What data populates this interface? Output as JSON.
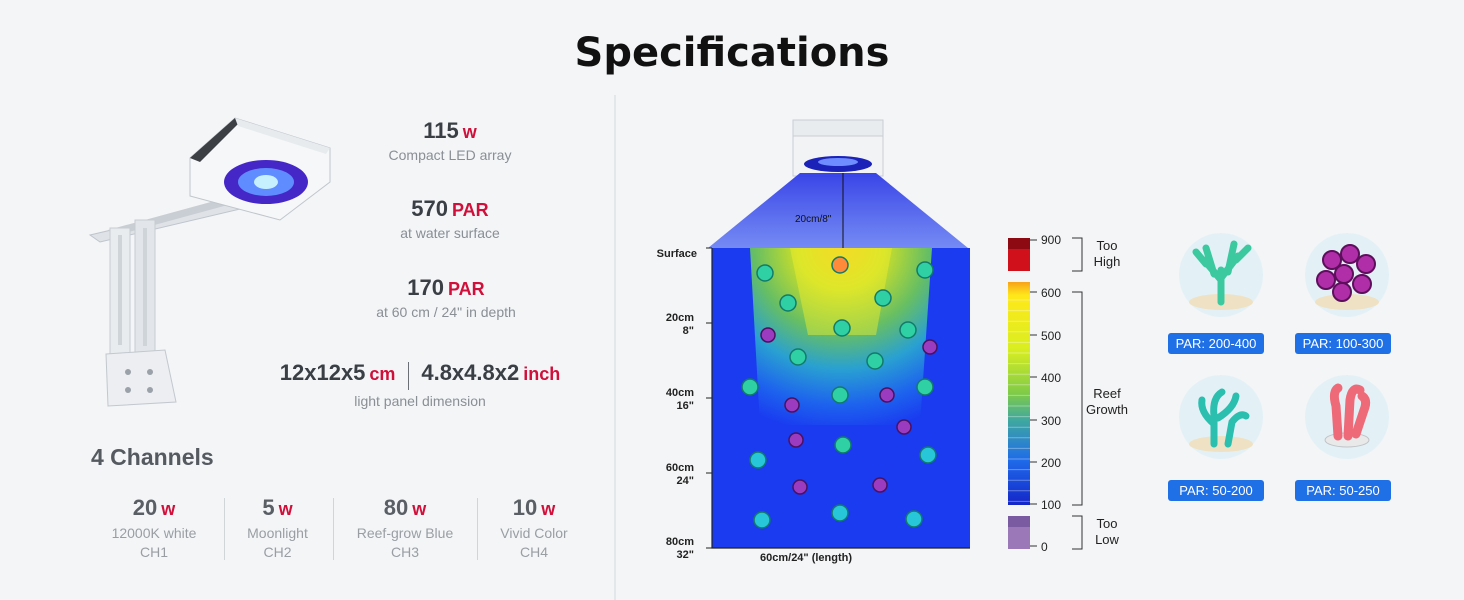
{
  "title": "Specifications",
  "specs": {
    "power": {
      "value": "115",
      "unit": "w",
      "desc": "Compact LED array"
    },
    "par_surface": {
      "value": "570",
      "unit": "PAR",
      "desc": "at water surface"
    },
    "par_depth": {
      "value": "170",
      "unit": "PAR",
      "desc": "at 60 cm / 24\" in depth"
    },
    "dimension": {
      "cm_value": "12x12x5",
      "cm_unit": "cm",
      "inch_value": "4.8x4.8x2",
      "inch_unit": "inch",
      "desc": "light panel dimension"
    }
  },
  "channels": {
    "title": "4 Channels",
    "items": [
      {
        "value": "20",
        "unit": "w",
        "desc": "12000K white",
        "ch": "CH1"
      },
      {
        "value": "5",
        "unit": "w",
        "desc": "Moonlight",
        "ch": "CH2"
      },
      {
        "value": "80",
        "unit": "w",
        "desc": "Reef-grow Blue",
        "ch": "CH3"
      },
      {
        "value": "10",
        "unit": "w",
        "desc": "Vivid Color",
        "ch": "CH4"
      }
    ]
  },
  "diagram": {
    "mount_height": "20cm/8\"",
    "depth_labels": [
      {
        "line1": "Surface",
        "line2": ""
      },
      {
        "line1": "20cm",
        "line2": "8\""
      },
      {
        "line1": "40cm",
        "line2": "16\""
      },
      {
        "line1": "60cm",
        "line2": "24\""
      },
      {
        "line1": "80cm",
        "line2": "32\""
      }
    ],
    "length_label": "60cm/24\"  (length)"
  },
  "par_scale": {
    "ticks": [
      "900",
      "600",
      "500",
      "400",
      "300",
      "200",
      "100",
      "0"
    ],
    "zones": [
      {
        "line1": "Too",
        "line2": "High"
      },
      {
        "line1": "Reef",
        "line2": "Growth"
      },
      {
        "line1": "Too",
        "line2": "Low"
      }
    ],
    "colors": {
      "high": "#d0101a",
      "low": "#9b79b8"
    }
  },
  "corals": [
    {
      "par": "PAR: 200-400",
      "icon": "branching-coral-icon",
      "color": "#3cc9a0"
    },
    {
      "par": "PAR: 100-300",
      "icon": "zoanthid-coral-icon",
      "color": "#b02fa8"
    },
    {
      "par": "PAR: 50-200",
      "icon": "soft-coral-icon",
      "color": "#2bbfb0"
    },
    {
      "par": "PAR: 50-250",
      "icon": "red-coral-icon",
      "color": "#ef6a78"
    }
  ]
}
